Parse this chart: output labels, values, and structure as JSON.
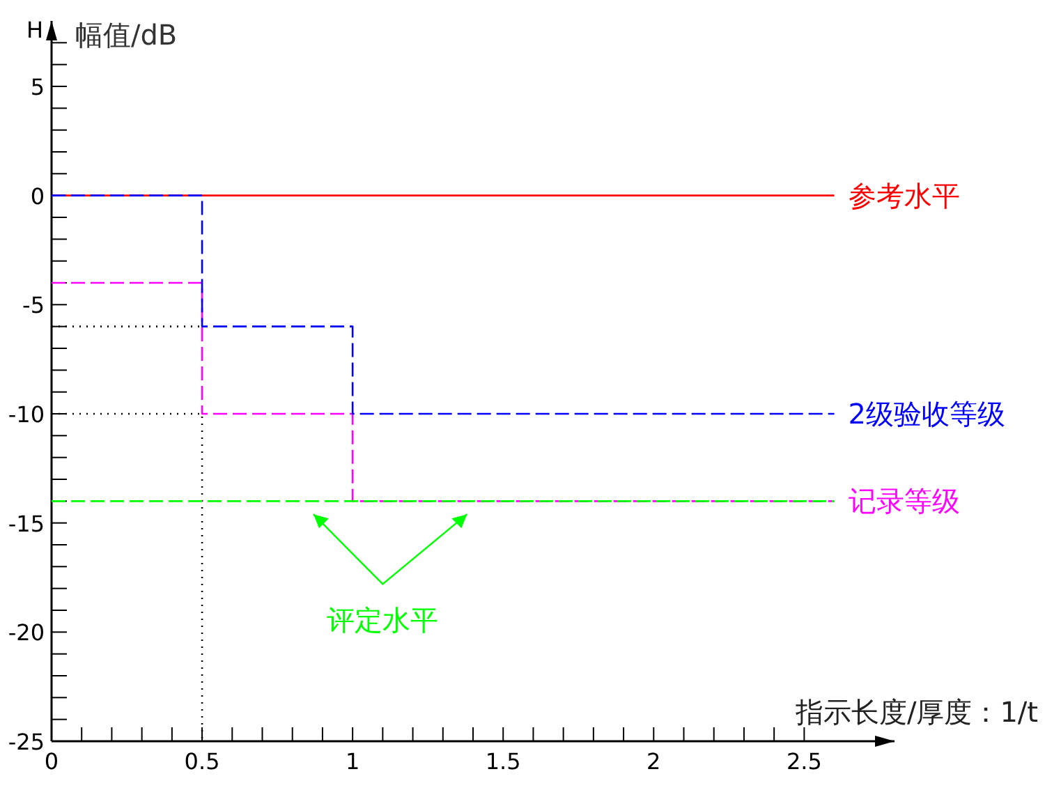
{
  "chart_data": {
    "type": "line",
    "xlabel": "指示长度/厚度：1/t",
    "ylabel": "幅值/dB",
    "annotations": [
      "H"
    ],
    "xlim": [
      0,
      2.8
    ],
    "ylim": [
      -25,
      8
    ],
    "legend": false,
    "grid": false,
    "marker": "none",
    "xticks": [
      0,
      {
        "value": 0.1,
        "label": null
      },
      {
        "value": 0.2,
        "label": null
      },
      {
        "value": 0.3,
        "label": null
      },
      {
        "value": 0.4,
        "label": null
      },
      0.5,
      {
        "value": 0.6,
        "label": null
      },
      {
        "value": 0.7,
        "label": null
      },
      {
        "value": 0.8,
        "label": null
      },
      {
        "value": 0.9,
        "label": null
      },
      1,
      {
        "value": 1.1,
        "label": null
      },
      {
        "value": 1.2,
        "label": null
      },
      {
        "value": 1.3,
        "label": null
      },
      {
        "value": 1.4,
        "label": null
      },
      1.5,
      {
        "value": 1.6,
        "label": null
      },
      {
        "value": 1.7,
        "label": null
      },
      {
        "value": 1.8,
        "label": null
      },
      {
        "value": 1.9,
        "label": null
      },
      2,
      {
        "value": 2.1,
        "label": null
      },
      {
        "value": 2.2,
        "label": null
      },
      {
        "value": 2.3,
        "label": null
      },
      {
        "value": 2.4,
        "label": null
      },
      2.5
    ],
    "yticks": [
      -25,
      {
        "value": -24,
        "label": null
      },
      {
        "value": -23,
        "label": null
      },
      {
        "value": -22,
        "label": null
      },
      {
        "value": -21,
        "label": null
      },
      -20,
      {
        "value": -19,
        "label": null
      },
      {
        "value": -18,
        "label": null
      },
      {
        "value": -17,
        "label": null
      },
      {
        "value": -16,
        "label": null
      },
      -15,
      {
        "value": -14,
        "label": null
      },
      {
        "value": -13,
        "label": null
      },
      {
        "value": -12,
        "label": null
      },
      {
        "value": -11,
        "label": null
      },
      -10,
      {
        "value": -9,
        "label": null
      },
      {
        "value": -8,
        "label": null
      },
      {
        "value": -7,
        "label": null
      },
      {
        "value": -6,
        "label": null
      },
      -5,
      {
        "value": -4,
        "label": null
      },
      {
        "value": -3,
        "label": null
      },
      {
        "value": -2,
        "label": null
      },
      {
        "value": -1,
        "label": null
      },
      0,
      {
        "value": 1,
        "label": null
      },
      {
        "value": 2,
        "label": null
      },
      {
        "value": 3,
        "label": null
      },
      {
        "value": 4,
        "label": null
      },
      5,
      {
        "value": 6,
        "label": null
      },
      {
        "value": 7,
        "label": null
      }
    ],
    "series": [
      {
        "color": "#000000",
        "line_style": "dotted",
        "x": [
          0,
          0.5
        ],
        "values": [
          -6,
          -6
        ]
      },
      {
        "color": "#000000",
        "line_style": "dotted",
        "x": [
          0,
          0.5,
          0.5
        ],
        "values": [
          -10,
          -10,
          -25
        ]
      },
      {
        "name": "参考水平",
        "color": "#ff0000",
        "line_style": "solid",
        "x": [
          0,
          2.6
        ],
        "values": [
          0,
          0
        ]
      },
      {
        "name": "记录等级",
        "color": "#ff00ff",
        "line_style": "dashed",
        "x": [
          0,
          0.5,
          0.5,
          1,
          1,
          2.6
        ],
        "values": [
          -4,
          -4,
          -10,
          -10,
          -14,
          -14
        ]
      },
      {
        "name": "2级验收等级",
        "color": "#0000ff",
        "line_style": "dashed",
        "x": [
          0,
          0.5,
          0.5,
          1,
          1,
          2.6
        ],
        "values": [
          0,
          0,
          -6,
          -6,
          -10,
          -10
        ]
      },
      {
        "name": "评定水平",
        "color": "#00ff00",
        "line_style": "dashed",
        "x": [
          0,
          2.6
        ],
        "values": [
          -14,
          -14
        ]
      }
    ]
  }
}
